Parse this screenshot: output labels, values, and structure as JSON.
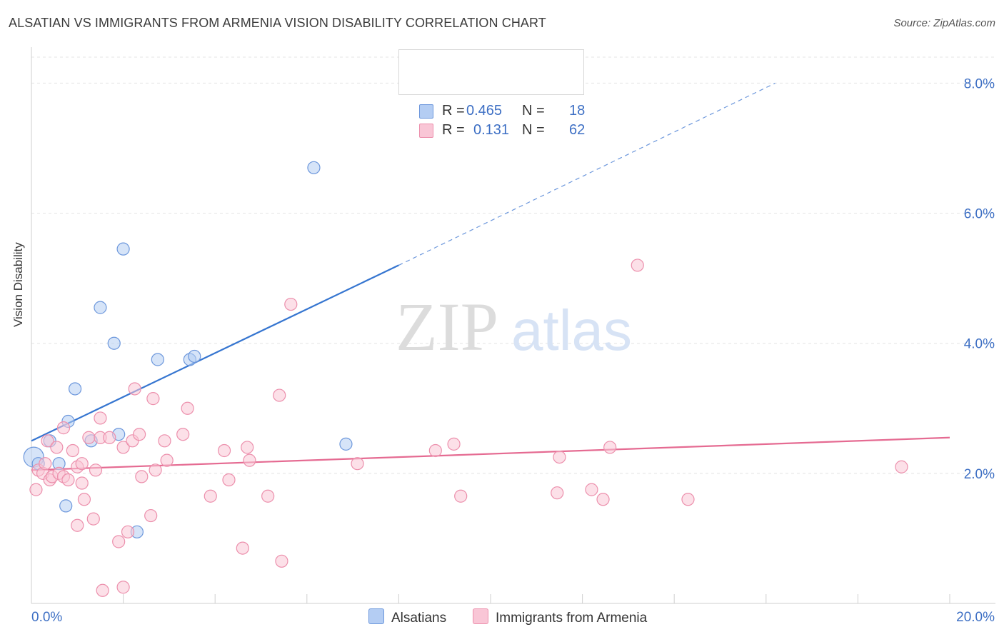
{
  "header": {
    "title": "ALSATIAN VS IMMIGRANTS FROM ARMENIA VISION DISABILITY CORRELATION CHART",
    "source": "Source: ZipAtlas.com"
  },
  "watermark": {
    "zip": "ZIP",
    "atlas": "atlas"
  },
  "legend": {
    "rows": [
      {
        "r_label": "R =",
        "r_value": "0.465",
        "n_label": "N =",
        "n_value": "18",
        "color": "#b4cdf3",
        "border": "#6c97dc"
      },
      {
        "r_label": "R =",
        "r_value": "0.131",
        "n_label": "N =",
        "n_value": "62",
        "color": "#f9c6d6",
        "border": "#ec8fac"
      }
    ]
  },
  "bottom_legend": {
    "items": [
      {
        "label": "Alsatians",
        "color": "#b4cdf3",
        "border": "#6c97dc"
      },
      {
        "label": "Immigrants from Armenia",
        "color": "#f9c6d6",
        "border": "#ec8fac"
      }
    ]
  },
  "chart_data": {
    "type": "scatter",
    "title": "ALSATIAN VS IMMIGRANTS FROM ARMENIA VISION DISABILITY CORRELATION CHART",
    "xlabel": "",
    "ylabel": "Vision Disability",
    "xlim": [
      0,
      20
    ],
    "ylim": [
      0,
      8.4
    ],
    "x_tick_labels": [
      "0.0%",
      "20.0%"
    ],
    "y_ticks": [
      2,
      4,
      6,
      8
    ],
    "y_tick_labels": [
      "2.0%",
      "4.0%",
      "6.0%",
      "8.0%"
    ],
    "grid": true,
    "series": [
      {
        "name": "Alsatians",
        "color": "#6c97dc",
        "fill": "#b4cdf3",
        "points": [
          [
            0.05,
            2.25
          ],
          [
            0.15,
            2.15
          ],
          [
            0.4,
            2.5
          ],
          [
            0.6,
            2.15
          ],
          [
            0.75,
            1.5
          ],
          [
            0.8,
            2.8
          ],
          [
            0.95,
            3.3
          ],
          [
            1.3,
            2.5
          ],
          [
            1.5,
            4.55
          ],
          [
            1.8,
            4.0
          ],
          [
            1.9,
            2.6
          ],
          [
            2.0,
            5.45
          ],
          [
            2.3,
            1.1
          ],
          [
            2.75,
            3.75
          ],
          [
            3.45,
            3.75
          ],
          [
            3.55,
            3.8
          ],
          [
            6.15,
            6.7
          ],
          [
            6.85,
            2.45
          ]
        ],
        "trend": {
          "x_solid": [
            0.0,
            8.0
          ],
          "y_solid": [
            2.5,
            5.2
          ],
          "x_dashed": [
            8.0,
            16.2
          ],
          "y_dashed": [
            5.2,
            8.0
          ]
        }
      },
      {
        "name": "Immigrants from Armenia",
        "color": "#ec8fac",
        "fill": "#f9c6d6",
        "points": [
          [
            0.1,
            1.75
          ],
          [
            0.15,
            2.05
          ],
          [
            0.25,
            2.0
          ],
          [
            0.3,
            2.15
          ],
          [
            0.35,
            2.5
          ],
          [
            0.4,
            1.9
          ],
          [
            0.45,
            1.95
          ],
          [
            0.55,
            2.4
          ],
          [
            0.6,
            2.0
          ],
          [
            0.7,
            1.95
          ],
          [
            0.7,
            2.7
          ],
          [
            0.8,
            1.9
          ],
          [
            0.9,
            2.35
          ],
          [
            1.0,
            1.2
          ],
          [
            1.0,
            2.1
          ],
          [
            1.1,
            1.85
          ],
          [
            1.1,
            2.15
          ],
          [
            1.15,
            1.6
          ],
          [
            1.25,
            2.55
          ],
          [
            1.35,
            1.3
          ],
          [
            1.4,
            2.05
          ],
          [
            1.5,
            2.55
          ],
          [
            1.5,
            2.85
          ],
          [
            1.55,
            0.2
          ],
          [
            1.7,
            2.55
          ],
          [
            1.9,
            0.95
          ],
          [
            2.0,
            2.4
          ],
          [
            2.0,
            0.25
          ],
          [
            2.1,
            1.1
          ],
          [
            2.2,
            2.5
          ],
          [
            2.25,
            3.3
          ],
          [
            2.35,
            2.6
          ],
          [
            2.4,
            1.95
          ],
          [
            2.6,
            1.35
          ],
          [
            2.65,
            3.15
          ],
          [
            2.7,
            2.05
          ],
          [
            2.9,
            2.5
          ],
          [
            2.95,
            2.2
          ],
          [
            3.3,
            2.6
          ],
          [
            3.4,
            3.0
          ],
          [
            3.9,
            1.65
          ],
          [
            4.2,
            2.35
          ],
          [
            4.3,
            1.9
          ],
          [
            4.6,
            0.85
          ],
          [
            4.7,
            2.4
          ],
          [
            4.75,
            2.2
          ],
          [
            5.15,
            1.65
          ],
          [
            5.4,
            3.2
          ],
          [
            5.45,
            0.65
          ],
          [
            5.65,
            4.6
          ],
          [
            7.1,
            2.15
          ],
          [
            8.8,
            2.35
          ],
          [
            9.2,
            2.45
          ],
          [
            9.35,
            1.65
          ],
          [
            11.45,
            1.7
          ],
          [
            11.5,
            2.25
          ],
          [
            12.2,
            1.75
          ],
          [
            12.45,
            1.6
          ],
          [
            12.6,
            2.4
          ],
          [
            13.2,
            5.2
          ],
          [
            14.3,
            1.6
          ],
          [
            18.95,
            2.1
          ]
        ],
        "trend": {
          "x": [
            0.0,
            20.0
          ],
          "y": [
            2.05,
            2.55
          ]
        }
      }
    ]
  }
}
